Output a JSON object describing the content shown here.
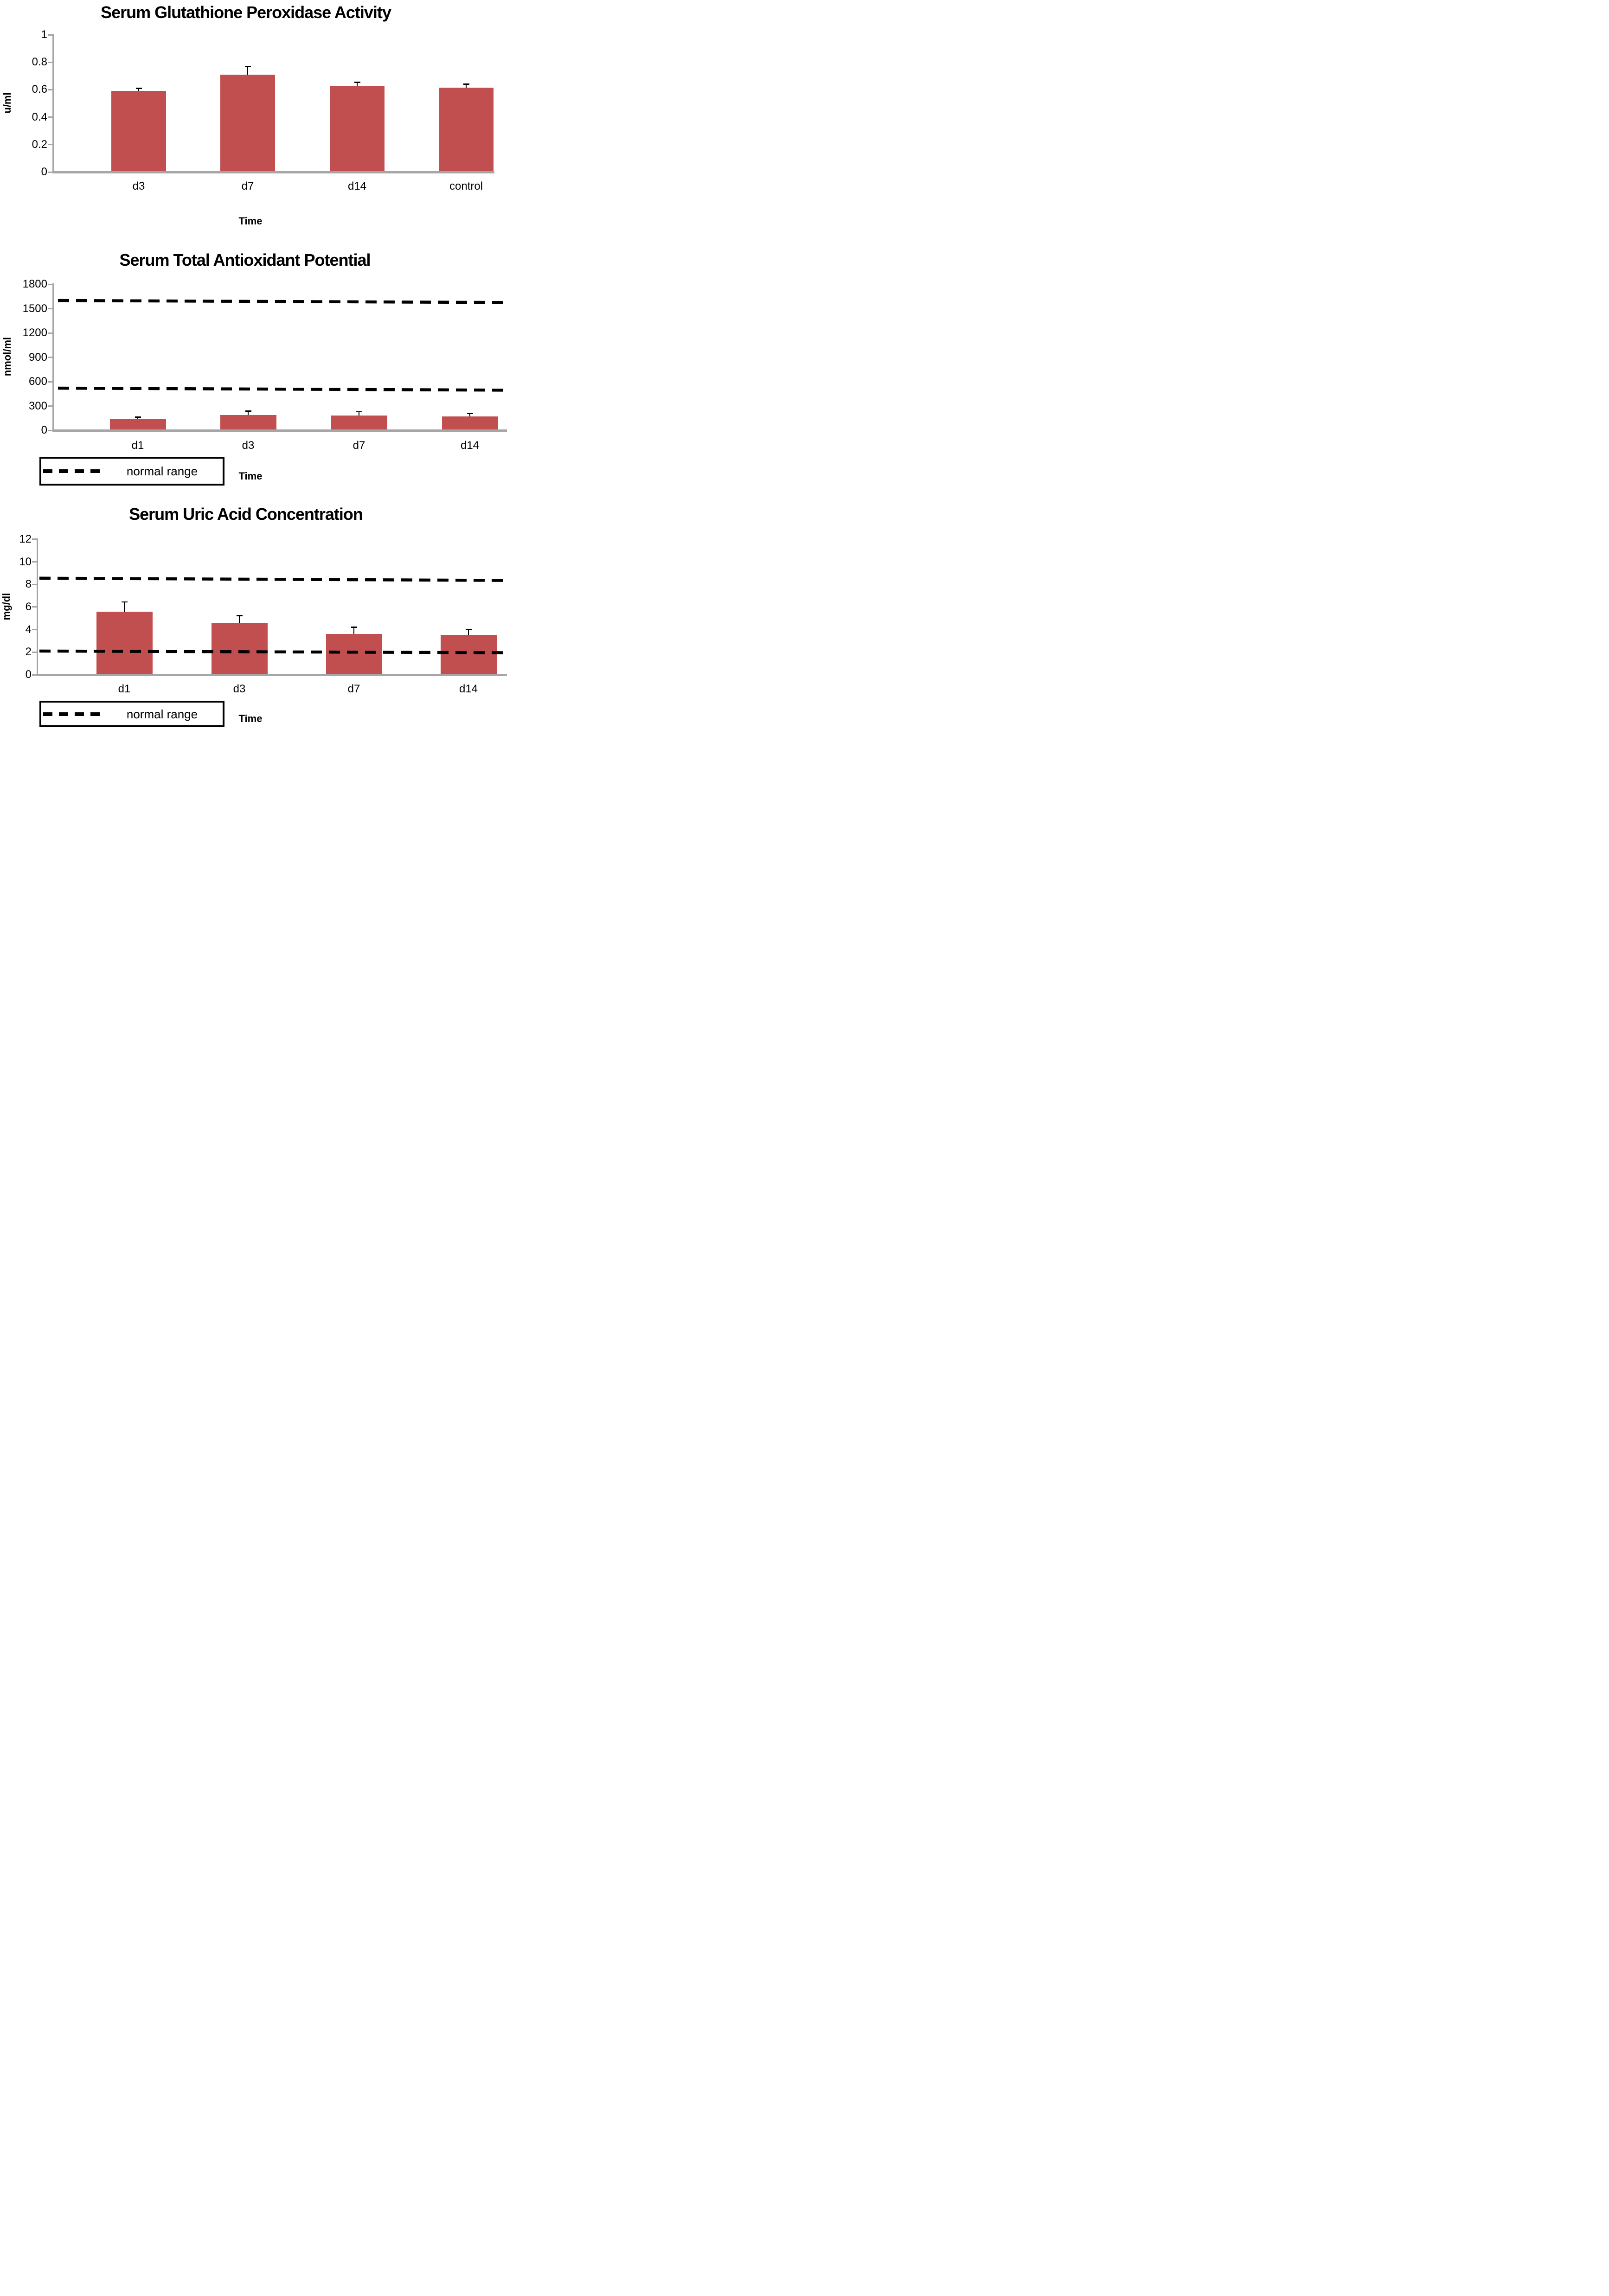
{
  "page": {
    "background": "#ffffff"
  },
  "colors": {
    "bar_fill": "#c14f50",
    "axis": "#a6a6a6",
    "error_bar": "#000000",
    "normal_range_line": "#000000",
    "text": "#000000"
  },
  "chart_data": [
    {
      "type": "bar",
      "title": "Serum Glutathione Peroxidase Activity",
      "ylabel": "u/ml",
      "xlabel": "Time",
      "categories": [
        "d3",
        "d7",
        "d14",
        "control"
      ],
      "values": [
        0.59,
        0.71,
        0.63,
        0.615
      ],
      "error_bar_tops": [
        0.61,
        0.77,
        0.655,
        0.64
      ],
      "y_ticks": [
        "1",
        "0.8",
        "0.6",
        "0.4",
        "0.2",
        "0"
      ],
      "ylim": [
        0,
        1
      ],
      "grid": false,
      "legend": null,
      "normal_range": null
    },
    {
      "type": "bar",
      "title": "Serum Total Antioxidant Potential",
      "ylabel": "nmol/ml",
      "xlabel": "Time",
      "categories": [
        "d1",
        "d3",
        "d7",
        "d14"
      ],
      "values": [
        145,
        190,
        185,
        170
      ],
      "error_bar_tops": [
        165,
        235,
        228,
        210
      ],
      "y_ticks": [
        "1800",
        "1500",
        "1200",
        "900",
        "600",
        "300",
        "0"
      ],
      "ylim": [
        0,
        1800
      ],
      "grid": false,
      "legend": {
        "label": "normal range",
        "position": "bottom-left"
      },
      "normal_range": {
        "upper_start": 1600,
        "upper_end": 1575,
        "lower_start": 520,
        "lower_end": 495
      }
    },
    {
      "type": "bar",
      "title": "Serum Uric Acid Concentration",
      "ylabel": "mg/dl",
      "xlabel": "Time",
      "categories": [
        "d1",
        "d3",
        "d7",
        "d14"
      ],
      "values": [
        5.6,
        4.6,
        3.6,
        3.55
      ],
      "error_bar_tops": [
        6.45,
        5.25,
        4.2,
        4.0
      ],
      "y_ticks": [
        "12",
        "10",
        "8",
        "6",
        "4",
        "2",
        "0"
      ],
      "ylim": [
        0,
        12
      ],
      "grid": false,
      "legend": {
        "label": "normal range",
        "position": "bottom-left"
      },
      "normal_range": {
        "upper_start": 8.55,
        "upper_end": 8.35,
        "lower_start": 2.1,
        "lower_end": 1.95
      }
    }
  ]
}
